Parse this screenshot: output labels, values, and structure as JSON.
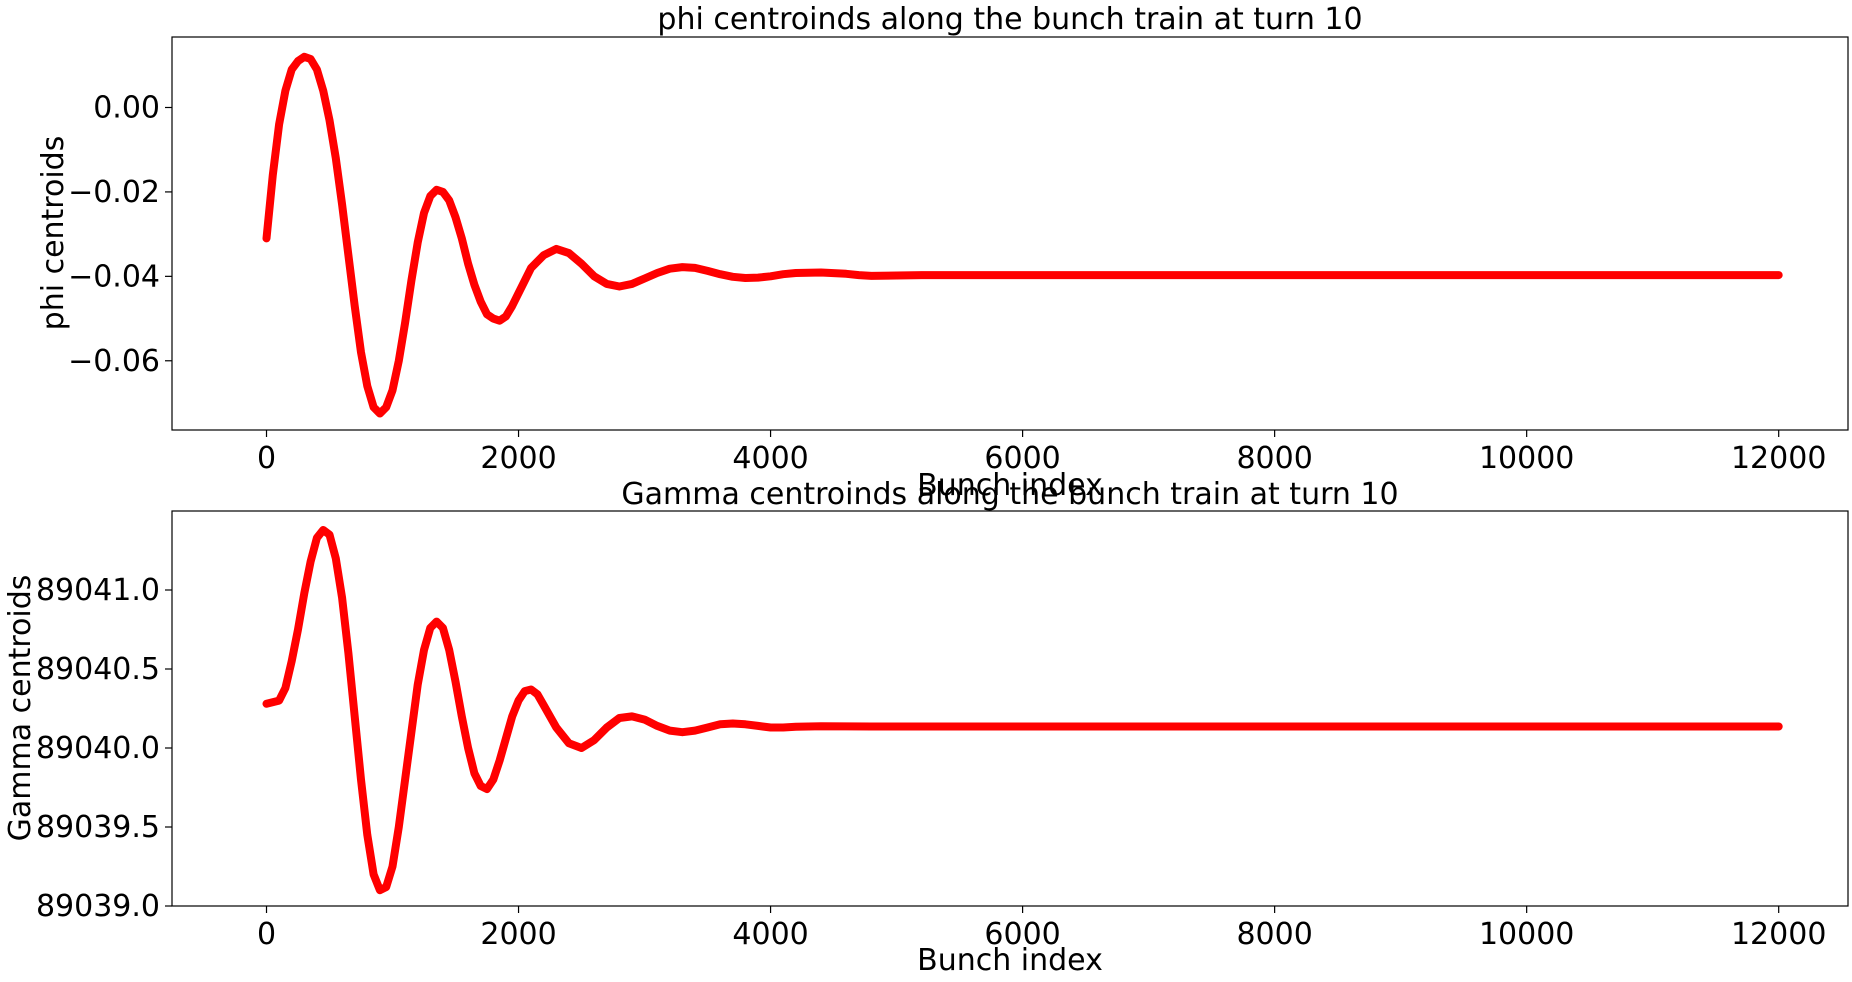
{
  "chart_data": [
    {
      "type": "line",
      "title": "phi centroinds along the bunch train at turn 10",
      "xlabel": "Bunch index",
      "ylabel": "phi centroids",
      "xlim": [
        -750,
        12550
      ],
      "ylim": [
        -0.0764,
        0.0167
      ],
      "xticks": [
        0,
        2000,
        4000,
        6000,
        8000,
        10000,
        12000
      ],
      "xtick_labels": [
        "0",
        "2000",
        "4000",
        "6000",
        "8000",
        "10000",
        "12000"
      ],
      "yticks": [
        0.0,
        -0.02,
        -0.04,
        -0.06
      ],
      "ytick_labels": [
        "0.00",
        "−0.02",
        "−0.04",
        "−0.06"
      ],
      "grid": false,
      "series": [
        {
          "color": "#ff0000",
          "x": [
            0,
            50,
            100,
            150,
            200,
            250,
            300,
            350,
            400,
            450,
            500,
            550,
            600,
            650,
            700,
            750,
            800,
            850,
            900,
            950,
            1000,
            1050,
            1100,
            1150,
            1200,
            1250,
            1300,
            1350,
            1400,
            1450,
            1500,
            1550,
            1600,
            1650,
            1700,
            1750,
            1800,
            1850,
            1900,
            1950,
            2000,
            2050,
            2100,
            2200,
            2300,
            2400,
            2500,
            2600,
            2700,
            2800,
            2900,
            3000,
            3100,
            3200,
            3300,
            3400,
            3500,
            3600,
            3700,
            3800,
            3900,
            4000,
            4100,
            4200,
            4400,
            4600,
            4700,
            4800,
            5000,
            5200,
            5600,
            6000,
            7000,
            8000,
            9000,
            10000,
            11000,
            12000
          ],
          "values": [
            -0.031,
            -0.016,
            -0.004,
            0.004,
            0.009,
            0.011,
            0.012,
            0.0115,
            0.009,
            0.004,
            -0.003,
            -0.012,
            -0.023,
            -0.035,
            -0.047,
            -0.058,
            -0.066,
            -0.071,
            -0.0725,
            -0.071,
            -0.067,
            -0.06,
            -0.051,
            -0.041,
            -0.032,
            -0.025,
            -0.021,
            -0.0195,
            -0.02,
            -0.022,
            -0.026,
            -0.031,
            -0.037,
            -0.042,
            -0.046,
            -0.049,
            -0.05,
            -0.0505,
            -0.0495,
            -0.047,
            -0.044,
            -0.041,
            -0.038,
            -0.035,
            -0.0335,
            -0.0345,
            -0.037,
            -0.04,
            -0.0418,
            -0.0424,
            -0.0418,
            -0.0405,
            -0.0392,
            -0.0382,
            -0.0378,
            -0.038,
            -0.0387,
            -0.0395,
            -0.0401,
            -0.0404,
            -0.0403,
            -0.04,
            -0.0395,
            -0.0392,
            -0.0391,
            -0.0394,
            -0.0397,
            -0.0399,
            -0.0398,
            -0.0397,
            -0.0397,
            -0.0397,
            -0.0397,
            -0.0397,
            -0.0397,
            -0.0397,
            -0.0397,
            -0.0397
          ]
        }
      ]
    },
    {
      "type": "line",
      "title": "Gamma centroinds along the bunch train at turn 10",
      "xlabel": "Bunch index",
      "ylabel": "Gamma centroids",
      "xlim": [
        -750,
        12550
      ],
      "ylim": [
        89039.0,
        89041.5
      ],
      "xticks": [
        0,
        2000,
        4000,
        6000,
        8000,
        10000,
        12000
      ],
      "xtick_labels": [
        "0",
        "2000",
        "4000",
        "6000",
        "8000",
        "10000",
        "12000"
      ],
      "yticks": [
        89039.0,
        89039.5,
        89040.0,
        89040.5,
        89041.0
      ],
      "ytick_labels": [
        "89039.0",
        "89039.5",
        "89040.0",
        "89040.5",
        "89041.0"
      ],
      "grid": false,
      "series": [
        {
          "color": "#ff0000",
          "x": [
            0,
            100,
            150,
            200,
            250,
            300,
            350,
            400,
            450,
            500,
            550,
            600,
            650,
            700,
            750,
            800,
            850,
            900,
            950,
            1000,
            1050,
            1100,
            1150,
            1200,
            1250,
            1300,
            1350,
            1400,
            1450,
            1500,
            1550,
            1600,
            1650,
            1700,
            1750,
            1800,
            1850,
            1900,
            1950,
            2000,
            2050,
            2100,
            2150,
            2200,
            2300,
            2400,
            2500,
            2600,
            2700,
            2800,
            2900,
            3000,
            3100,
            3200,
            3300,
            3400,
            3500,
            3600,
            3700,
            3800,
            3900,
            4000,
            4100,
            4200,
            4400,
            4600,
            4800,
            5000,
            5200,
            5600,
            6000,
            7000,
            8000,
            9000,
            10000,
            11000,
            12000
          ],
          "values": [
            89040.28,
            89040.3,
            89040.38,
            89040.55,
            89040.75,
            89040.98,
            89041.18,
            89041.33,
            89041.38,
            89041.35,
            89041.2,
            89040.95,
            89040.6,
            89040.2,
            89039.8,
            89039.45,
            89039.2,
            89039.1,
            89039.12,
            89039.25,
            89039.5,
            89039.8,
            89040.1,
            89040.4,
            89040.62,
            89040.76,
            89040.8,
            89040.76,
            89040.62,
            89040.42,
            89040.2,
            89040.0,
            89039.84,
            89039.76,
            89039.74,
            89039.8,
            89039.92,
            89040.06,
            89040.2,
            89040.3,
            89040.36,
            89040.37,
            89040.34,
            89040.27,
            89040.13,
            89040.03,
            89040.0,
            89040.05,
            89040.13,
            89040.19,
            89040.2,
            89040.18,
            89040.14,
            89040.11,
            89040.1,
            89040.11,
            89040.13,
            89040.15,
            89040.155,
            89040.15,
            89040.14,
            89040.13,
            89040.13,
            89040.135,
            89040.138,
            89040.137,
            89040.136,
            89040.136,
            89040.136,
            89040.136,
            89040.136,
            89040.136,
            89040.136,
            89040.136,
            89040.136,
            89040.136,
            89040.136
          ]
        }
      ]
    }
  ]
}
